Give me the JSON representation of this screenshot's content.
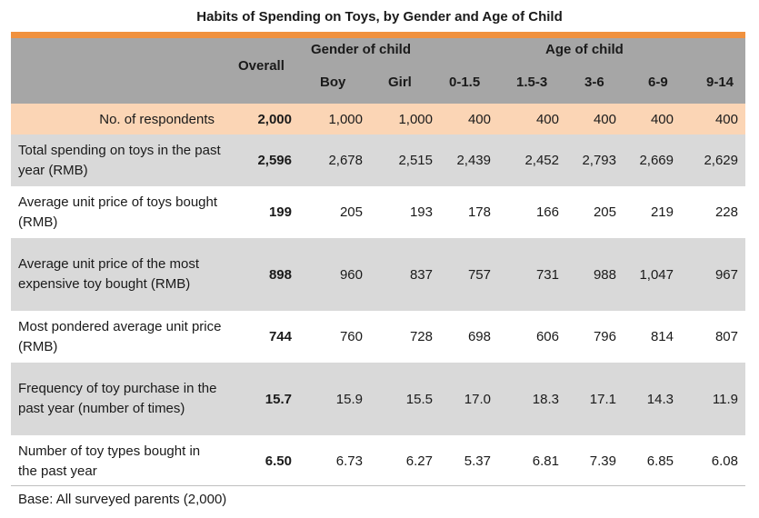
{
  "title": "Habits of Spending on Toys, by Gender and Age of Child",
  "header": {
    "overall": "Overall",
    "gender_group": "Gender of child",
    "age_group": "Age of child",
    "boy": "Boy",
    "girl": "Girl",
    "ages": [
      "0-1.5",
      "1.5-3",
      "3-6",
      "6-9",
      "9-14"
    ]
  },
  "rows": [
    {
      "label": "No. of respondents",
      "overall": "2,000",
      "boy": "1,000",
      "girl": "1,000",
      "ages": [
        "400",
        "400",
        "400",
        "400",
        "400"
      ]
    },
    {
      "label": "Total spending on toys in the past year (RMB)",
      "overall": "2,596",
      "boy": "2,678",
      "girl": "2,515",
      "ages": [
        "2,439",
        "2,452",
        "2,793",
        "2,669",
        "2,629"
      ]
    },
    {
      "label": "Average unit price of toys bought (RMB)",
      "overall": "199",
      "boy": "205",
      "girl": "193",
      "ages": [
        "178",
        "166",
        "205",
        "219",
        "228"
      ]
    },
    {
      "label": "Average unit price of the most expensive toy bought (RMB)",
      "overall": "898",
      "boy": "960",
      "girl": "837",
      "ages": [
        "757",
        "731",
        "988",
        "1,047",
        "967"
      ]
    },
    {
      "label": "Most pondered average unit price (RMB)",
      "overall": "744",
      "boy": "760",
      "girl": "728",
      "ages": [
        "698",
        "606",
        "796",
        "814",
        "807"
      ]
    },
    {
      "label": "Frequency of toy purchase in the past year (number of times)",
      "overall": "15.7",
      "boy": "15.9",
      "girl": "15.5",
      "ages": [
        "17.0",
        "18.3",
        "17.1",
        "14.3",
        "11.9"
      ]
    },
    {
      "label": "Number of toy types bought in the past year",
      "overall": "6.50",
      "boy": "6.73",
      "girl": "6.27",
      "ages": [
        "5.37",
        "6.81",
        "7.39",
        "6.85",
        "6.08"
      ]
    }
  ],
  "footnote": "Base: All surveyed parents (2,000)",
  "colors": {
    "accent_bar": "#F0913E",
    "header_bg": "#A6A6A6",
    "respondents_bg": "#FBD5B5",
    "stripe_bg": "#D9D9D9"
  }
}
